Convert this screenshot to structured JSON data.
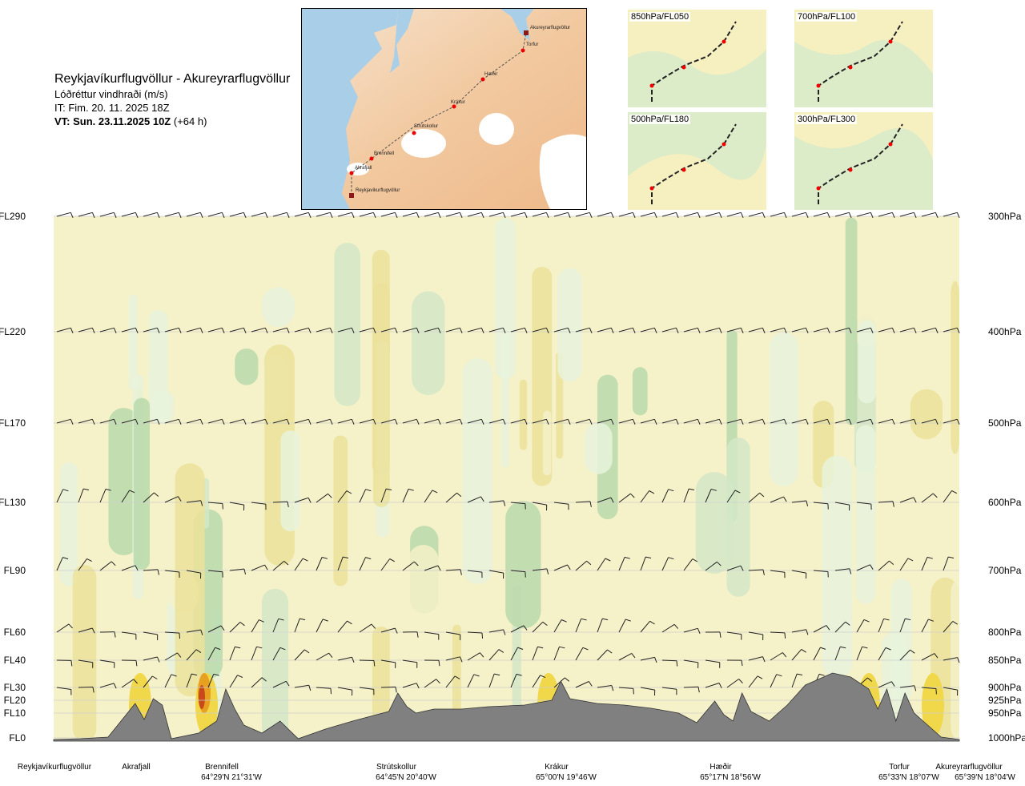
{
  "header": {
    "route": "Reykjavíkurflugvöllur - Akureyrarflugvöllur",
    "variable": "Lóðréttur vindhraði (m/s)",
    "issue": "IT: Fim. 20. 11. 2025 18Z",
    "valid_bold": "VT: Sun. 23.11.2025 10Z",
    "valid_lead": "(+64 h)"
  },
  "map": {
    "waypoints": [
      "Reykjavíkurflugvöllur",
      "Akrafjall",
      "Brennifell",
      "Strútskollur",
      "Krákur",
      "Hæðir",
      "Torfur",
      "Akureyrarflugvöllur"
    ]
  },
  "mini_maps": [
    {
      "label": "850hPa/FL050"
    },
    {
      "label": "700hPa/FL100"
    },
    {
      "label": "500hPa/FL180"
    },
    {
      "label": "300hPa/FL300"
    }
  ],
  "colors": {
    "updraft_weak": "#f5f1c8",
    "updraft_mod": "#ece29a",
    "updraft_strong": "#f0d84a",
    "updraft_vstrong": "#e8a020",
    "updraft_extreme": "#c84a1a",
    "downdraft_weak": "#e8f3dc",
    "downdraft_mod": "#d3e8c7",
    "downdraft_strong": "#b8d9ac",
    "neutral": "#ffffff",
    "terrain": "#808080"
  },
  "chart_data": {
    "type": "heatmap",
    "title": "Lóðréttur vindhraði (m/s)",
    "y_levels": [
      {
        "fl": "FL290",
        "hpa": "300hPa"
      },
      {
        "fl": "FL220",
        "hpa": "400hPa"
      },
      {
        "fl": "FL170",
        "hpa": "500hPa"
      },
      {
        "fl": "FL130",
        "hpa": "600hPa"
      },
      {
        "fl": "FL90",
        "hpa": "700hPa"
      },
      {
        "fl": "FL60",
        "hpa": "800hPa"
      },
      {
        "fl": "FL40",
        "hpa": "850hPa"
      },
      {
        "fl": "FL30",
        "hpa": "900hPa"
      },
      {
        "fl": "FL20",
        "hpa": "925hPa"
      },
      {
        "fl": "FL10",
        "hpa": "950hPa"
      },
      {
        "fl": "FL0",
        "hpa": "1000hPa"
      }
    ],
    "x_stations": [
      {
        "name": "Reykjavíkurflugvöllur",
        "coord": "",
        "frac": 0.0
      },
      {
        "name": "Akrafjall",
        "coord": "",
        "frac": 0.09
      },
      {
        "name": "Brennifell",
        "coord": "64°29'N 21°31'W",
        "frac": 0.19
      },
      {
        "name": "Strútskollur",
        "coord": "64°45'N 20°40'W",
        "frac": 0.38
      },
      {
        "name": "Krákur",
        "coord": "65°00'N 19°46'W",
        "frac": 0.56
      },
      {
        "name": "Hæðir",
        "coord": "65°17'N 18°56'W",
        "frac": 0.75
      },
      {
        "name": "Torfur",
        "coord": "65°33'N 18°07'W",
        "frac": 0.95
      },
      {
        "name": "Akureyrarflugvöllur",
        "coord": "65°39'N 18°04'W",
        "frac": 1.0
      }
    ],
    "grid": true
  }
}
